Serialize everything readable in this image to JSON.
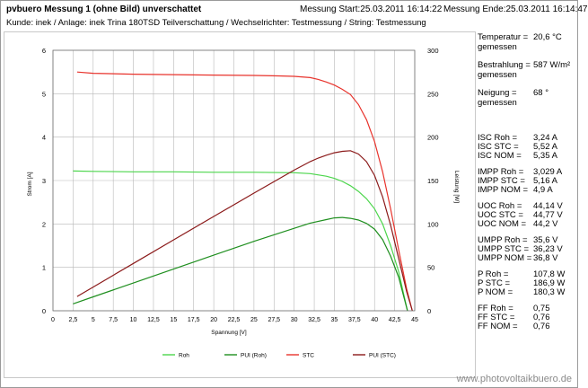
{
  "header": {
    "title": "pvbuero Messung 1 (ohne Bild) unverschattet",
    "start": "Messung Start:25.03.2011 16:14:22",
    "end": "Messung Ende:25.03.2011 16:14:47",
    "subtitle": "Kunde: inek / Anlage: inek Trina 180TSD Teilverschattung / Wechselrichter: Testmessung / String: Testmessung"
  },
  "side": {
    "rows": [
      {
        "k": "Temperatur =",
        "v": "20,6 °C"
      },
      {
        "k": "gemessen",
        "v": ""
      },
      {
        "k": "Bestrahlung =",
        "v": "587 W/m²"
      },
      {
        "k": "gemessen",
        "v": ""
      },
      {
        "k": "Neigung =",
        "v": "68 °"
      },
      {
        "k": "gemessen",
        "v": ""
      },
      {
        "k": "ISC Roh =",
        "v": "3,24 A"
      },
      {
        "k": "ISC STC =",
        "v": "5,52 A"
      },
      {
        "k": "ISC NOM =",
        "v": "5,35 A"
      },
      {
        "k": "IMPP Roh =",
        "v": "3,029 A"
      },
      {
        "k": "IMPP STC =",
        "v": "5,16 A"
      },
      {
        "k": "IMPP NOM =",
        "v": "4,9 A"
      },
      {
        "k": "UOC Roh =",
        "v": "44,14 V"
      },
      {
        "k": "UOC STC =",
        "v": "44,77 V"
      },
      {
        "k": "UOC NOM =",
        "v": "44,2 V"
      },
      {
        "k": "UMPP Roh =",
        "v": "35,6 V"
      },
      {
        "k": "UMPP STC =",
        "v": "36,23 V"
      },
      {
        "k": "UMPP NOM =",
        "v": "36,8 V"
      },
      {
        "k": "P Roh =",
        "v": "107,8 W"
      },
      {
        "k": "P STC =",
        "v": "186,9 W"
      },
      {
        "k": "P NOM =",
        "v": "180,3 W"
      },
      {
        "k": "FF Roh =",
        "v": "0,75"
      },
      {
        "k": "FF STC =",
        "v": "0,76"
      },
      {
        "k": "FF NOM =",
        "v": "0,76"
      }
    ]
  },
  "watermark": "www.photovoltaikbuero.de",
  "colors": {
    "roh": "#4cd64c",
    "pui_roh": "#1f8f1f",
    "stc": "#e8332c",
    "pui_stc": "#8b1a1a",
    "grid": "#b8b8b8"
  },
  "chart_data": {
    "type": "line",
    "xlabel": "Spannung [V]",
    "ylabel": "Strom [A]",
    "y2label": "Leistung [W]",
    "xlim": [
      0,
      45
    ],
    "ylim": [
      0,
      6
    ],
    "y2lim": [
      0,
      300
    ],
    "xticks": [
      "0",
      "2,5",
      "5",
      "7,5",
      "10",
      "12,5",
      "15",
      "17,5",
      "20",
      "22,5",
      "25",
      "27,5",
      "30",
      "32,5",
      "35",
      "37,5",
      "40",
      "42,5",
      "45"
    ],
    "yticks": [
      "0",
      "1",
      "2",
      "3",
      "4",
      "5",
      "6"
    ],
    "y2ticks": [
      "0",
      "50",
      "100",
      "150",
      "200",
      "250",
      "300"
    ],
    "grid": true,
    "legend": "bottom",
    "series": [
      {
        "name": "Roh",
        "axis": "left",
        "color_key": "roh",
        "x": [
          2.5,
          5,
          10,
          15,
          20,
          25,
          30,
          32,
          34,
          35,
          36,
          37,
          38,
          39,
          40,
          41,
          42,
          43,
          43.6,
          44.1
        ],
        "y": [
          3.22,
          3.21,
          3.2,
          3.2,
          3.19,
          3.19,
          3.18,
          3.16,
          3.1,
          3.05,
          2.98,
          2.88,
          2.75,
          2.58,
          2.35,
          2.0,
          1.5,
          0.9,
          0.4,
          0.0
        ]
      },
      {
        "name": "PUI (Roh)",
        "axis": "right",
        "color_key": "pui_roh",
        "x": [
          2.5,
          5,
          10,
          15,
          20,
          25,
          30,
          32,
          34,
          35,
          36,
          37,
          38,
          39,
          40,
          41,
          42,
          43,
          43.6,
          44.1
        ],
        "y": [
          8,
          16,
          32,
          48,
          64,
          80,
          95,
          101,
          105,
          107,
          107.5,
          106.5,
          104.5,
          100.5,
          94,
          82,
          63,
          38.7,
          17.4,
          0
        ]
      },
      {
        "name": "STC",
        "axis": "left",
        "color_key": "stc",
        "x": [
          3,
          5,
          10,
          15,
          20,
          25,
          28,
          30,
          32,
          33,
          34,
          35,
          36,
          37,
          38,
          39,
          40,
          41,
          42,
          43,
          44,
          44.7
        ],
        "y": [
          5.5,
          5.47,
          5.45,
          5.44,
          5.43,
          5.42,
          5.41,
          5.4,
          5.37,
          5.33,
          5.27,
          5.2,
          5.1,
          4.98,
          4.75,
          4.4,
          3.9,
          3.2,
          2.35,
          1.4,
          0.5,
          0.0
        ]
      },
      {
        "name": "PUI (STC)",
        "axis": "right",
        "color_key": "pui_stc",
        "x": [
          3,
          5,
          10,
          15,
          20,
          25,
          28,
          30,
          32,
          33,
          34,
          35,
          36,
          37,
          38,
          39,
          40,
          41,
          42,
          43,
          44,
          44.7
        ],
        "y": [
          16.5,
          27.3,
          54.5,
          81.6,
          108.6,
          135.5,
          151.5,
          162,
          171.8,
          175.9,
          179.2,
          182,
          183.6,
          184.3,
          180.5,
          171.6,
          156,
          131.2,
          98.7,
          60.2,
          22,
          0
        ]
      }
    ]
  }
}
